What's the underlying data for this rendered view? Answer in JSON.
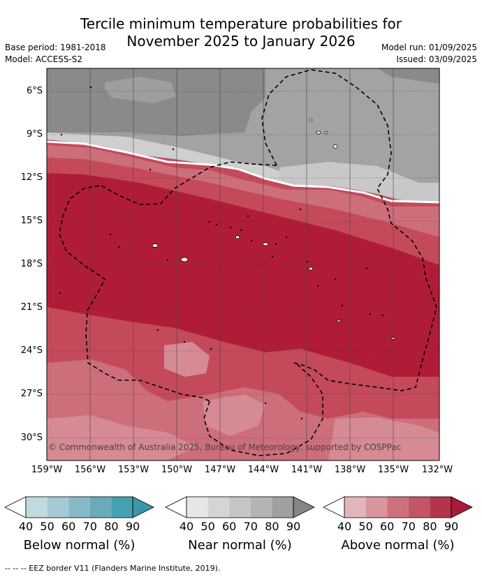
{
  "title_line1": "Tercile minimum temperature probabilities for",
  "title_line2": "November 2025 to January 2026",
  "base_period": "Base period: 1981-2018",
  "model": "Model: ACCESS-S2",
  "model_run": "Model run: 01/09/2025",
  "issued": "Issued: 03/09/2025",
  "lat_labels": [
    "6°S",
    "9°S",
    "12°S",
    "15°S",
    "18°S",
    "21°S",
    "24°S",
    "27°S",
    "30°S"
  ],
  "lon_labels": [
    "159°W",
    "156°W",
    "153°W",
    "150°W",
    "147°W",
    "144°W",
    "141°W",
    "138°W",
    "135°W",
    "132°W"
  ],
  "copyright": "© Commonwealth of Australia 2025, Bureau of Meteorology, supported by COSPPac",
  "legends": [
    {
      "label": "Below normal (%)",
      "ticks": [
        "40",
        "50",
        "60",
        "70",
        "80",
        "90"
      ],
      "colors": [
        "#c1d9e1",
        "#a6cad4",
        "#88b9c6",
        "#6aaab9",
        "#45a0b1"
      ]
    },
    {
      "label": "Near normal (%)",
      "ticks": [
        "40",
        "50",
        "60",
        "70",
        "80",
        "90"
      ],
      "colors": [
        "#e6e6e6",
        "#d5d5d5",
        "#c5c5c5",
        "#b4b4b4",
        "#a0a0a0"
      ]
    },
    {
      "label": "Above normal (%)",
      "ticks": [
        "40",
        "50",
        "60",
        "70",
        "80",
        "90"
      ],
      "colors": [
        "#e2b5bc",
        "#d8959e",
        "#cd717d",
        "#c25666",
        "#b4354b"
      ]
    }
  ],
  "footer": "--  --  -- EEZ border V11 (Flanders Marine Institute, 2019).",
  "colors": {
    "ocean_dark_grey": "#8a8a8a",
    "light_grey": "#a3a3a3",
    "pale_grey": "#c8c8c8",
    "deep_red": "#b01c37",
    "mid_red": "#c44a5b",
    "light_red": "#cd6e7b",
    "pale_red": "#d58a94"
  }
}
